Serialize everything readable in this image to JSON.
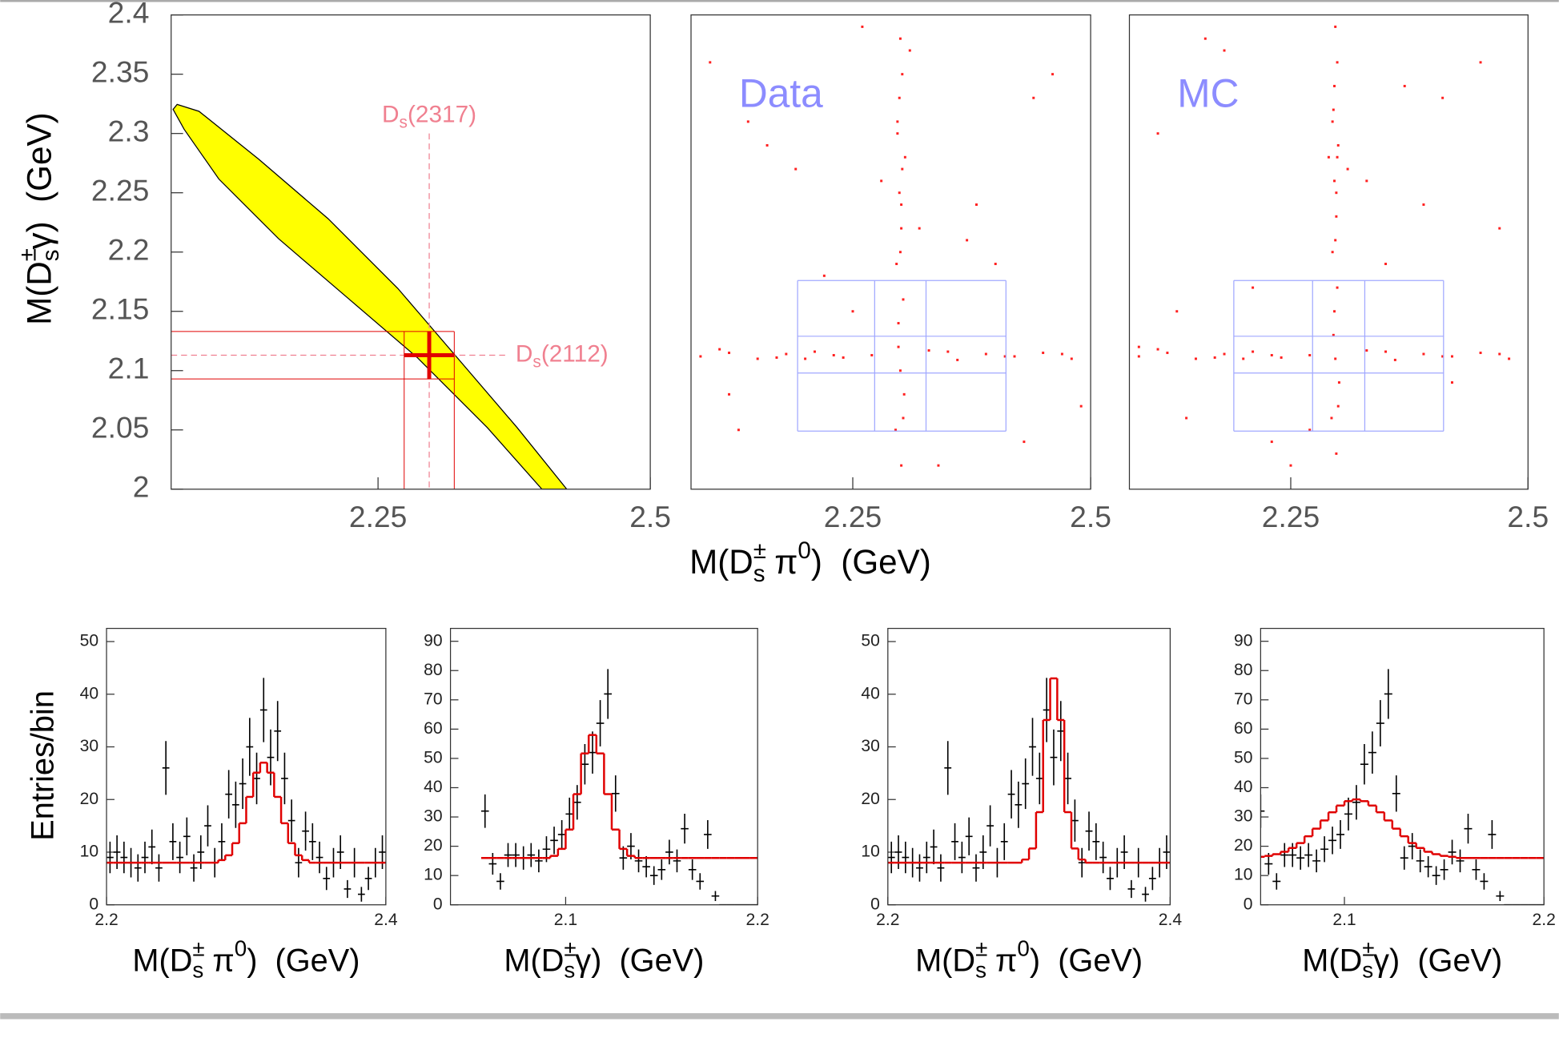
{
  "chart_data": [
    {
      "type": "contour",
      "xlim": [
        2.06,
        2.5
      ],
      "ylim": [
        2,
        2.4
      ],
      "xticks": [
        2.25,
        2.5
      ],
      "yticks": [
        2,
        2.05,
        2.1,
        2.15,
        2.2,
        2.25,
        2.3,
        2.35,
        2.4
      ],
      "ylabel": [
        {
          "text": "M(D"
        },
        {
          "text": "±",
          "script": "sup"
        },
        {
          "text": "s",
          "script": "sub"
        },
        {
          "text": "γ)  (GeV)"
        }
      ],
      "region": {
        "color": "#ffff00",
        "x": [
          2.0655,
          2.0856,
          2.1403,
          2.2042,
          2.2681,
          2.3229,
          2.3777,
          2.4233,
          2.4005,
          2.3503,
          2.2864,
          2.2225,
          2.1586,
          2.1038,
          2.0719,
          2.0618
        ],
        "y": [
          2.3245,
          2.3187,
          2.2784,
          2.2281,
          2.1694,
          2.1107,
          2.052,
          2.0,
          2.0,
          2.052,
          2.1107,
          2.161,
          2.2113,
          2.2616,
          2.3036,
          2.3203
        ]
      },
      "marker": {
        "x": 2.297,
        "y": 2.113,
        "xerr": 0.023,
        "yerr": 0.02,
        "color": "#e00000"
      },
      "annotations": [
        {
          "line": "vertical",
          "x": 2.297,
          "y": 2.3,
          "color": "#f08090",
          "label": [
            {
              "text": "D"
            },
            {
              "text": "s",
              "script": "sub"
            },
            {
              "text": "(2317)"
            }
          ]
        },
        {
          "line": "horizontal",
          "x": 2.369,
          "y": 2.113,
          "color": "#f08090",
          "label": [
            {
              "text": "D"
            },
            {
              "text": "s",
              "script": "sub"
            },
            {
              "text": "(2112)"
            }
          ]
        }
      ]
    },
    {
      "type": "scatter",
      "xlim": [
        2.08,
        2.5
      ],
      "ylim": [
        2,
        2.4
      ],
      "xticks": [
        2.25,
        2.5
      ],
      "color": "#ff2020",
      "annotation": {
        "text": "Data",
        "color": "#8c8cff"
      },
      "xlabel": [
        {
          "text": "M(D"
        },
        {
          "text": "±",
          "script": "sup"
        },
        {
          "text": "s",
          "script": "sub"
        },
        {
          "text": " π"
        },
        {
          "text": "0",
          "script": "sup"
        },
        {
          "text": ")  (GeV)"
        }
      ],
      "boxes": {
        "color": "#a0a8ff",
        "x": [
          2.192,
          2.273,
          2.327,
          2.411
        ],
        "y": [
          2.049,
          2.098,
          2.129,
          2.176
        ]
      },
      "x": [
        2.3,
        2.302,
        2.297,
        2.305,
        2.299,
        2.301,
        2.296,
        2.303,
        2.298,
        2.3,
        2.304,
        2.295,
        2.301,
        2.299,
        2.302,
        2.3,
        2.298,
        2.303,
        2.297,
        2.301,
        2.09,
        2.12,
        2.15,
        2.18,
        2.21,
        2.24,
        2.27,
        2.33,
        2.36,
        2.39,
        2.42,
        2.45,
        2.48,
        2.11,
        2.17,
        2.23,
        2.35,
        2.41,
        2.47,
        2.2,
        2.1,
        2.13,
        2.16,
        2.22,
        2.26,
        2.34,
        2.38,
        2.44,
        2.49,
        2.19,
        2.25,
        2.31,
        2.37,
        2.43,
        2.14,
        2.28,
        2.4,
        2.46,
        2.12,
        2.32
      ],
      "y": [
        2.38,
        2.35,
        2.31,
        2.28,
        2.25,
        2.22,
        2.19,
        2.16,
        2.14,
        2.1,
        2.08,
        2.05,
        2.02,
        2.33,
        2.27,
        2.2,
        2.12,
        2.06,
        2.3,
        2.24,
        2.112,
        2.115,
        2.11,
        2.114,
        2.116,
        2.111,
        2.113,
        2.117,
        2.109,
        2.114,
        2.112,
        2.115,
        2.11,
        2.118,
        2.111,
        2.113,
        2.116,
        2.112,
        2.114,
        2.11,
        2.36,
        2.05,
        2.29,
        2.18,
        2.39,
        2.02,
        2.24,
        2.33,
        2.07,
        2.27,
        2.15,
        2.37,
        2.21,
        2.04,
        2.31,
        2.26,
        2.19,
        2.35,
        2.08,
        2.22
      ]
    },
    {
      "type": "scatter",
      "xlim": [
        2.08,
        2.5
      ],
      "ylim": [
        2,
        2.4
      ],
      "xticks": [
        2.25,
        2.5
      ],
      "color": "#ff2020",
      "annotation": {
        "text": "MC",
        "color": "#8c8cff"
      },
      "boxes": {
        "color": "#a0a8ff",
        "x": [
          2.19,
          2.273,
          2.328,
          2.411
        ],
        "y": [
          2.049,
          2.098,
          2.129,
          2.176
        ]
      },
      "x": [
        2.297,
        2.299,
        2.295,
        2.3,
        2.296,
        2.298,
        2.294,
        2.299,
        2.296,
        2.297,
        2.301,
        2.293,
        2.298,
        2.296,
        2.299,
        2.297,
        2.295,
        2.3,
        2.294,
        2.298,
        2.09,
        2.12,
        2.15,
        2.18,
        2.21,
        2.24,
        2.27,
        2.33,
        2.36,
        2.39,
        2.42,
        2.45,
        2.48,
        2.11,
        2.17,
        2.23,
        2.35,
        2.41,
        2.47,
        2.2,
        2.11,
        2.14,
        2.18,
        2.21,
        2.25,
        2.33,
        2.37,
        2.42,
        2.47,
        2.16,
        2.23,
        2.29,
        2.35,
        2.41,
        2.09,
        2.27,
        2.39,
        2.45,
        2.13,
        2.31
      ],
      "y": [
        2.39,
        2.36,
        2.32,
        2.29,
        2.26,
        2.23,
        2.2,
        2.17,
        2.15,
        2.11,
        2.09,
        2.06,
        2.03,
        2.34,
        2.28,
        2.21,
        2.13,
        2.07,
        2.31,
        2.25,
        2.112,
        2.115,
        2.11,
        2.114,
        2.116,
        2.111,
        2.113,
        2.117,
        2.109,
        2.114,
        2.112,
        2.115,
        2.11,
        2.118,
        2.111,
        2.113,
        2.116,
        2.112,
        2.114,
        2.11,
        2.3,
        2.06,
        2.37,
        2.17,
        2.02,
        2.26,
        2.34,
        2.09,
        2.22,
        2.38,
        2.04,
        2.28,
        2.19,
        2.33,
        2.12,
        2.05,
        2.24,
        2.36,
        2.15,
        2.27
      ]
    },
    {
      "type": "histogram",
      "xlim": [
        2.2,
        2.4
      ],
      "ylim": [
        0,
        52.5
      ],
      "xticks": [
        2.2,
        2.4
      ],
      "yticks": [
        0,
        10,
        20,
        30,
        40,
        50
      ],
      "color": "#000000",
      "ylabel": "Entries/bin",
      "xlabel": [
        {
          "text": "M(D"
        },
        {
          "text": "±",
          "script": "sup"
        },
        {
          "text": "s",
          "script": "sub"
        },
        {
          "text": " π"
        },
        {
          "text": "0",
          "script": "sup"
        },
        {
          "text": ")  (GeV)"
        }
      ],
      "bins": [
        2.2,
        2.205,
        2.21,
        2.215,
        2.22,
        2.225,
        2.23,
        2.235,
        2.24,
        2.245,
        2.25,
        2.255,
        2.26,
        2.265,
        2.27,
        2.275,
        2.28,
        2.285,
        2.29,
        2.295,
        2.3,
        2.305,
        2.31,
        2.315,
        2.32,
        2.325,
        2.33,
        2.335,
        2.34,
        2.345,
        2.35,
        2.355,
        2.36,
        2.365,
        2.37,
        2.375,
        2.38,
        2.385,
        2.39,
        2.395,
        2.4
      ],
      "values": [
        9,
        10,
        9,
        8,
        7,
        9,
        11,
        7,
        26,
        12,
        9,
        13,
        7,
        10,
        15,
        8,
        12,
        21,
        19,
        23,
        30,
        24,
        37,
        28,
        33,
        24,
        16,
        8,
        14,
        12,
        9,
        5,
        8,
        10,
        3,
        8,
        2,
        5,
        8,
        10
      ],
      "errors": [
        3,
        3.2,
        3,
        2.8,
        2.6,
        3,
        3.3,
        2.6,
        5.1,
        3.5,
        3,
        3.6,
        2.6,
        3.2,
        3.9,
        2.8,
        3.5,
        4.6,
        4.4,
        4.8,
        5.5,
        4.9,
        6.1,
        5.3,
        5.7,
        4.9,
        4,
        2.8,
        3.7,
        3.5,
        3,
        2.2,
        2.8,
        3.2,
        1.7,
        2.8,
        1.4,
        2.2,
        2.8,
        3.2
      ],
      "fit": {
        "color": "#e00000",
        "values": [
          8,
          8,
          8,
          8,
          8,
          8,
          8,
          8,
          8,
          8,
          8,
          8,
          8,
          8,
          8,
          8,
          8.5,
          9.4,
          11.7,
          15.5,
          20.5,
          25.1,
          27,
          25.1,
          20.5,
          15.5,
          11.7,
          9.4,
          8.5,
          8,
          8,
          8,
          8,
          8,
          8,
          8,
          8,
          8,
          8,
          8
        ]
      }
    },
    {
      "type": "histogram",
      "xlim": [
        2.04,
        2.2
      ],
      "ylim": [
        0,
        94.4
      ],
      "xticks": [
        2.1,
        2.2
      ],
      "yticks": [
        0,
        10,
        20,
        30,
        40,
        50,
        60,
        70,
        80,
        90
      ],
      "color": "#000000",
      "xlabel": [
        {
          "text": "M(D"
        },
        {
          "text": "±",
          "script": "sup"
        },
        {
          "text": "s",
          "script": "sub"
        },
        {
          "text": "γ)  (GeV)"
        }
      ],
      "bins": [
        2.056,
        2.06,
        2.064,
        2.068,
        2.072,
        2.076,
        2.08,
        2.084,
        2.088,
        2.092,
        2.096,
        2.1,
        2.104,
        2.108,
        2.112,
        2.116,
        2.12,
        2.124,
        2.128,
        2.132,
        2.136,
        2.14,
        2.144,
        2.148,
        2.152,
        2.156,
        2.16,
        2.164,
        2.168,
        2.172,
        2.176,
        2.18,
        2.184,
        2.188,
        2.192,
        2.196,
        2.2
      ],
      "values": [
        32,
        14,
        8,
        17,
        17,
        16,
        17,
        15,
        19,
        22,
        24,
        31,
        35,
        48,
        52,
        62,
        72,
        38,
        16,
        20,
        15,
        13,
        10,
        12,
        18,
        15,
        26,
        12,
        8,
        24,
        3,
        0,
        0,
        0,
        0,
        0
      ],
      "errors": [
        5.7,
        3.7,
        2.8,
        4.1,
        4.1,
        4,
        4.1,
        3.9,
        4.4,
        4.7,
        4.9,
        5.6,
        5.9,
        6.9,
        7.2,
        7.9,
        8.5,
        6.2,
        4,
        4.5,
        3.9,
        3.6,
        3.2,
        3.5,
        4.2,
        3.9,
        5.1,
        3.5,
        2.8,
        4.9,
        1.7,
        0,
        0,
        0,
        0,
        0
      ],
      "fit": {
        "color": "#e00000",
        "values": [
          16,
          16,
          16,
          16,
          16,
          16,
          16,
          16,
          16,
          16.7,
          19.1,
          25.7,
          37.8,
          51.7,
          58,
          51.7,
          37.8,
          25.7,
          19.1,
          16.7,
          16,
          16,
          16,
          16,
          16,
          16,
          16,
          16,
          16,
          16,
          16,
          16,
          16,
          16,
          16,
          16
        ]
      }
    },
    {
      "type": "histogram",
      "xlim": [
        2.2,
        2.4
      ],
      "ylim": [
        0,
        52.5
      ],
      "xticks": [
        2.2,
        2.4
      ],
      "yticks": [
        0,
        10,
        20,
        30,
        40,
        50
      ],
      "color": "#000000",
      "xlabel": [
        {
          "text": "M(D"
        },
        {
          "text": "±",
          "script": "sup"
        },
        {
          "text": "s",
          "script": "sub"
        },
        {
          "text": " π"
        },
        {
          "text": "0",
          "script": "sup"
        },
        {
          "text": ")  (GeV)"
        }
      ],
      "bins": [
        2.2,
        2.205,
        2.21,
        2.215,
        2.22,
        2.225,
        2.23,
        2.235,
        2.24,
        2.245,
        2.25,
        2.255,
        2.26,
        2.265,
        2.27,
        2.275,
        2.28,
        2.285,
        2.29,
        2.295,
        2.3,
        2.305,
        2.31,
        2.315,
        2.32,
        2.325,
        2.33,
        2.335,
        2.34,
        2.345,
        2.35,
        2.355,
        2.36,
        2.365,
        2.37,
        2.375,
        2.38,
        2.385,
        2.39,
        2.395,
        2.4
      ],
      "values": [
        9,
        10,
        9,
        8,
        7,
        9,
        11,
        7,
        26,
        12,
        9,
        13,
        7,
        10,
        15,
        8,
        12,
        21,
        19,
        23,
        30,
        24,
        37,
        28,
        33,
        24,
        16,
        8,
        14,
        12,
        9,
        5,
        8,
        10,
        3,
        8,
        2,
        5,
        8,
        10
      ],
      "errors": [
        3,
        3.2,
        3,
        2.8,
        2.6,
        3,
        3.3,
        2.6,
        5.1,
        3.5,
        3,
        3.6,
        2.6,
        3.2,
        3.9,
        2.8,
        3.5,
        4.6,
        4.4,
        4.8,
        5.5,
        4.9,
        6.1,
        5.3,
        5.7,
        4.9,
        4,
        2.8,
        3.7,
        3.5,
        3,
        2.2,
        2.8,
        3.2,
        1.7,
        2.8,
        1.4,
        2.2,
        2.8,
        3.2
      ],
      "fit": {
        "color": "#e00000",
        "values": [
          8,
          8,
          8,
          8,
          8,
          8,
          8,
          8,
          8,
          8,
          8,
          8,
          8,
          8,
          8,
          8,
          8,
          8,
          8,
          8.6,
          10.7,
          17.6,
          35.1,
          43,
          35.1,
          17.6,
          10.7,
          8.6,
          8,
          8,
          8,
          8,
          8,
          8,
          8,
          8,
          8,
          8,
          8,
          8
        ]
      }
    },
    {
      "type": "histogram",
      "xlim": [
        2.058,
        2.2
      ],
      "ylim": [
        0,
        94.4
      ],
      "xticks": [
        2.1,
        2.2
      ],
      "yticks": [
        0,
        10,
        20,
        30,
        40,
        50,
        60,
        70,
        80,
        90
      ],
      "color": "#000000",
      "xlabel": [
        {
          "text": "M(D"
        },
        {
          "text": "±",
          "script": "sup"
        },
        {
          "text": "s",
          "script": "sub"
        },
        {
          "text": "γ)  (GeV)"
        }
      ],
      "bins": [
        2.056,
        2.06,
        2.064,
        2.068,
        2.072,
        2.076,
        2.08,
        2.084,
        2.088,
        2.092,
        2.096,
        2.1,
        2.104,
        2.108,
        2.112,
        2.116,
        2.12,
        2.124,
        2.128,
        2.132,
        2.136,
        2.14,
        2.144,
        2.148,
        2.152,
        2.156,
        2.16,
        2.164,
        2.168,
        2.172,
        2.176,
        2.18,
        2.184,
        2.188,
        2.192,
        2.196,
        2.2
      ],
      "values": [
        32,
        14,
        8,
        17,
        17,
        16,
        17,
        15,
        19,
        22,
        24,
        31,
        35,
        48,
        52,
        62,
        72,
        38,
        16,
        20,
        15,
        13,
        10,
        12,
        18,
        15,
        26,
        12,
        8,
        24,
        3,
        0,
        0,
        0,
        0,
        0
      ],
      "errors": [
        5.7,
        3.7,
        2.8,
        4.1,
        4.1,
        4,
        4.1,
        3.9,
        4.4,
        4.7,
        4.9,
        5.6,
        5.9,
        6.9,
        7.2,
        7.9,
        8.5,
        6.2,
        4,
        4.5,
        3.9,
        3.6,
        3.2,
        3.5,
        4.2,
        3.9,
        5.1,
        3.5,
        2.8,
        4.9,
        1.7,
        0,
        0,
        0,
        0,
        0
      ],
      "fit": {
        "color": "#e00000",
        "values": [
          16.4,
          16.7,
          17.3,
          18.1,
          19.4,
          21.1,
          23.4,
          26,
          28.8,
          31.6,
          33.9,
          35.4,
          36,
          35.4,
          33.9,
          31.6,
          28.8,
          26,
          23.4,
          21.1,
          19.4,
          18.1,
          17.3,
          16.7,
          16.4,
          16,
          16,
          16,
          16,
          16,
          16,
          16,
          16,
          16,
          16,
          16
        ]
      }
    }
  ]
}
